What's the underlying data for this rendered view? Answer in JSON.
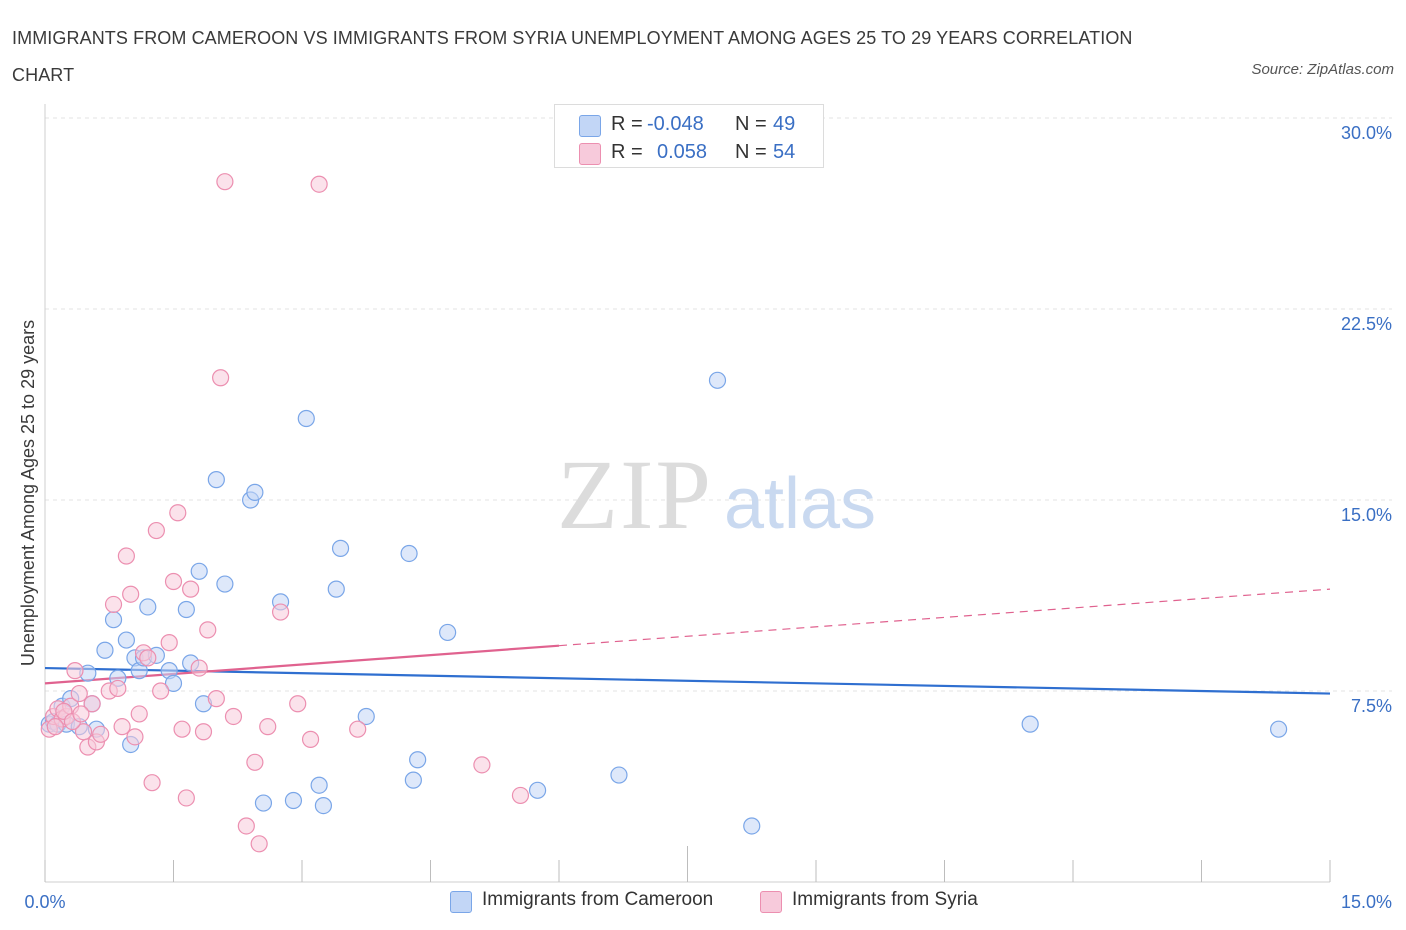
{
  "title": "IMMIGRANTS FROM CAMEROON VS IMMIGRANTS FROM SYRIA UNEMPLOYMENT AMONG AGES 25 TO 29 YEARS CORRELATION CHART",
  "source": "Source: ZipAtlas.com",
  "watermark": {
    "zip": "ZIP",
    "atlas": "atlas"
  },
  "colors": {
    "blue": "#7aa6e8",
    "blue_fill": "#c2d6f6",
    "blue_line": "#2f6fd0",
    "pink": "#ec8fb0",
    "pink_fill": "#f7cadb",
    "pink_line": "#e0628f",
    "grid": "#e3e3e3",
    "tick_text": "#3a6fc4"
  },
  "legend": {
    "rows": [
      {
        "r_label": "R =",
        "r_value": "-0.048",
        "n_label": "N =",
        "n_value": "49",
        "series": "blue"
      },
      {
        "r_label": "R =",
        "r_value": "0.058",
        "n_label": "N =",
        "n_value": "54",
        "series": "pink"
      }
    ]
  },
  "bottom_legend": [
    "Immigrants from Cameroon",
    "Immigrants from Syria"
  ],
  "chart_data": {
    "type": "scatter",
    "title": "IMMIGRANTS FROM CAMEROON VS IMMIGRANTS FROM SYRIA UNEMPLOYMENT AMONG AGES 25 TO 29 YEARS CORRELATION CHART",
    "xlabel": "",
    "ylabel": "Unemployment Among Ages 25 to 29 years",
    "xlim": [
      0,
      15
    ],
    "ylim": [
      0,
      30
    ],
    "x_tick_labels": [
      "0.0%",
      "15.0%"
    ],
    "y_ticks": [
      7.5,
      15,
      22.5,
      30
    ],
    "y_tick_labels": [
      "7.5%",
      "15.0%",
      "22.5%",
      "30.0%"
    ],
    "grid": true,
    "series": [
      {
        "name": "Immigrants from Cameroon",
        "color": "blue",
        "trend": {
          "x0": 0,
          "y0": 8.4,
          "x1": 15,
          "y1": 7.4,
          "dashed_from": null
        },
        "points": [
          [
            0.05,
            6.2
          ],
          [
            0.1,
            6.3
          ],
          [
            0.15,
            6.2
          ],
          [
            0.2,
            6.9
          ],
          [
            0.25,
            6.2
          ],
          [
            0.3,
            7.2
          ],
          [
            0.4,
            6.1
          ],
          [
            0.5,
            8.2
          ],
          [
            0.55,
            7.0
          ],
          [
            0.6,
            6.0
          ],
          [
            0.7,
            9.1
          ],
          [
            0.8,
            10.3
          ],
          [
            0.85,
            8.0
          ],
          [
            0.95,
            9.5
          ],
          [
            1.0,
            5.4
          ],
          [
            1.05,
            8.8
          ],
          [
            1.1,
            8.3
          ],
          [
            1.15,
            8.8
          ],
          [
            1.2,
            10.8
          ],
          [
            1.3,
            8.9
          ],
          [
            1.45,
            8.3
          ],
          [
            1.5,
            7.8
          ],
          [
            1.65,
            10.7
          ],
          [
            1.7,
            8.6
          ],
          [
            1.8,
            12.2
          ],
          [
            1.85,
            7.0
          ],
          [
            2.0,
            15.8
          ],
          [
            2.1,
            11.7
          ],
          [
            2.4,
            15.0
          ],
          [
            2.45,
            15.3
          ],
          [
            2.55,
            3.1
          ],
          [
            2.75,
            11.0
          ],
          [
            2.9,
            3.2
          ],
          [
            3.05,
            18.2
          ],
          [
            3.2,
            3.8
          ],
          [
            3.25,
            3.0
          ],
          [
            3.4,
            11.5
          ],
          [
            3.45,
            13.1
          ],
          [
            3.75,
            6.5
          ],
          [
            4.25,
            12.9
          ],
          [
            4.3,
            4.0
          ],
          [
            4.35,
            4.8
          ],
          [
            4.7,
            9.8
          ],
          [
            5.75,
            3.6
          ],
          [
            6.7,
            4.2
          ],
          [
            7.85,
            19.7
          ],
          [
            8.25,
            2.2
          ],
          [
            11.5,
            6.2
          ],
          [
            14.4,
            6.0
          ]
        ]
      },
      {
        "name": "Immigrants from Syria",
        "color": "pink",
        "trend": {
          "x0": 0,
          "y0": 7.8,
          "x1": 15,
          "y1": 11.5,
          "dashed_from": 6.0
        },
        "points": [
          [
            0.05,
            6.0
          ],
          [
            0.1,
            6.5
          ],
          [
            0.15,
            6.8
          ],
          [
            0.2,
            6.4
          ],
          [
            0.25,
            6.5
          ],
          [
            0.3,
            6.9
          ],
          [
            0.35,
            8.3
          ],
          [
            0.4,
            7.4
          ],
          [
            0.45,
            5.9
          ],
          [
            0.5,
            5.3
          ],
          [
            0.55,
            7.0
          ],
          [
            0.6,
            5.5
          ],
          [
            0.65,
            5.8
          ],
          [
            0.75,
            7.5
          ],
          [
            0.8,
            10.9
          ],
          [
            0.85,
            7.6
          ],
          [
            0.9,
            6.1
          ],
          [
            0.95,
            12.8
          ],
          [
            1.0,
            11.3
          ],
          [
            1.05,
            5.7
          ],
          [
            1.1,
            6.6
          ],
          [
            1.15,
            9.0
          ],
          [
            1.2,
            8.8
          ],
          [
            1.25,
            3.9
          ],
          [
            1.3,
            13.8
          ],
          [
            1.35,
            7.5
          ],
          [
            1.45,
            9.4
          ],
          [
            1.5,
            11.8
          ],
          [
            1.55,
            14.5
          ],
          [
            1.6,
            6.0
          ],
          [
            1.65,
            3.3
          ],
          [
            1.7,
            11.5
          ],
          [
            1.8,
            8.4
          ],
          [
            1.85,
            5.9
          ],
          [
            1.9,
            9.9
          ],
          [
            2.0,
            7.2
          ],
          [
            2.05,
            19.8
          ],
          [
            2.1,
            27.5
          ],
          [
            2.2,
            6.5
          ],
          [
            2.35,
            2.2
          ],
          [
            2.45,
            4.7
          ],
          [
            2.5,
            1.5
          ],
          [
            2.6,
            6.1
          ],
          [
            2.75,
            10.6
          ],
          [
            2.95,
            7.0
          ],
          [
            3.1,
            5.6
          ],
          [
            3.2,
            27.4
          ],
          [
            3.65,
            6.0
          ],
          [
            5.1,
            4.6
          ],
          [
            5.55,
            3.4
          ],
          [
            0.12,
            6.1
          ],
          [
            0.22,
            6.7
          ],
          [
            0.32,
            6.3
          ],
          [
            0.42,
            6.6
          ]
        ]
      }
    ]
  }
}
